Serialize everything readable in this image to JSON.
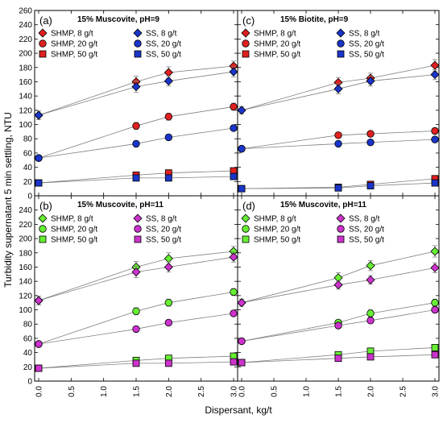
{
  "figure": {
    "ylabel": "Turbidity supernatant 5 min settling, NTU",
    "xlabel": "Dispersant, kg/t",
    "colors": {
      "red": "#e02020",
      "blue": "#1a35c9",
      "green": "#66ee33",
      "magenta": "#cc33cc",
      "line": "#808080",
      "errorbar": "#808080"
    }
  },
  "chart_data": [
    {
      "type": "scatter",
      "panel_label": "(a)",
      "title": "15% Muscovite, pH=9",
      "x": [
        0.0,
        1.5,
        2.0,
        3.0
      ],
      "xlim": [
        0,
        3
      ],
      "xticks": [
        "0.0",
        "0.5",
        "1.0",
        "1.5",
        "2.0",
        "2.5",
        "3.0"
      ],
      "ylim": [
        0,
        260
      ],
      "yticks": [
        "0",
        "20",
        "40",
        "60",
        "80",
        "100",
        "120",
        "140",
        "160",
        "180",
        "200",
        "220",
        "240",
        "260"
      ],
      "legend_position": "top-left",
      "series": [
        {
          "name": "SHMP, 8 g/t",
          "marker": "diamond",
          "color": "red",
          "values": [
            113,
            160,
            173,
            182
          ],
          "errors": [
            6,
            8,
            8,
            7
          ]
        },
        {
          "name": "SS, 8 g/t",
          "marker": "diamond",
          "color": "blue",
          "values": [
            113,
            153,
            161,
            174
          ],
          "errors": [
            6,
            8,
            7,
            7
          ]
        },
        {
          "name": "SHMP, 20 g/t",
          "marker": "circle",
          "color": "red",
          "values": [
            53,
            98,
            111,
            125
          ],
          "errors": [
            3,
            5,
            5,
            5
          ]
        },
        {
          "name": "SS, 20 g/t",
          "marker": "circle",
          "color": "blue",
          "values": [
            53,
            73,
            82,
            95
          ],
          "errors": [
            3,
            4,
            4,
            4
          ]
        },
        {
          "name": "SHMP, 50 g/t",
          "marker": "square",
          "color": "red",
          "values": [
            18,
            29,
            32,
            35
          ],
          "errors": [
            2,
            2,
            2,
            2
          ]
        },
        {
          "name": "SS, 50 g/t",
          "marker": "square",
          "color": "blue",
          "values": [
            18,
            25,
            25,
            27
          ],
          "errors": [
            2,
            2,
            2,
            2
          ]
        }
      ]
    },
    {
      "type": "scatter",
      "panel_label": "(c)",
      "title": "15% Biotite, pH=9",
      "x": [
        0.0,
        1.5,
        2.0,
        3.0
      ],
      "xlim": [
        0,
        3
      ],
      "xticks": [
        "0.0",
        "0.5",
        "1.0",
        "1.5",
        "2.0",
        "2.5",
        "3.0"
      ],
      "ylim": [
        0,
        260
      ],
      "yticks": [
        "0",
        "20",
        "40",
        "60",
        "80",
        "100",
        "120",
        "140",
        "160",
        "180",
        "200",
        "220",
        "240",
        "260"
      ],
      "legend_position": "top-left",
      "series": [
        {
          "name": "SHMP, 8 g/t",
          "marker": "diamond",
          "color": "red",
          "values": [
            120,
            159,
            165,
            183
          ],
          "errors": [
            5,
            7,
            7,
            8
          ]
        },
        {
          "name": "SS, 8 g/t",
          "marker": "diamond",
          "color": "blue",
          "values": [
            120,
            150,
            161,
            170
          ],
          "errors": [
            5,
            7,
            7,
            7
          ]
        },
        {
          "name": "SHMP, 20 g/t",
          "marker": "circle",
          "color": "red",
          "values": [
            66,
            85,
            87,
            91
          ],
          "errors": [
            3,
            4,
            4,
            4
          ]
        },
        {
          "name": "SS, 20 g/t",
          "marker": "circle",
          "color": "blue",
          "values": [
            66,
            73,
            75,
            79
          ],
          "errors": [
            3,
            3,
            3,
            3
          ]
        },
        {
          "name": "SHMP, 50 g/t",
          "marker": "square",
          "color": "red",
          "values": [
            10,
            12,
            16,
            24
          ],
          "errors": [
            1,
            2,
            2,
            2
          ]
        },
        {
          "name": "SS, 50 g/t",
          "marker": "square",
          "color": "blue",
          "values": [
            10,
            11,
            14,
            18
          ],
          "errors": [
            1,
            1,
            2,
            2
          ]
        }
      ]
    },
    {
      "type": "scatter",
      "panel_label": "(b)",
      "title": "15% Muscovite, pH=11",
      "x": [
        0.0,
        1.5,
        2.0,
        3.0
      ],
      "xlim": [
        0,
        3
      ],
      "xticks": [
        "0.0",
        "0.5",
        "1.0",
        "1.5",
        "2.0",
        "2.5",
        "3.0"
      ],
      "ylim": [
        0,
        260
      ],
      "yticks": [
        "0",
        "20",
        "40",
        "60",
        "80",
        "100",
        "120",
        "140",
        "160",
        "180",
        "200",
        "220",
        "240"
      ],
      "legend_position": "top-left",
      "series": [
        {
          "name": "SHMP, 8 g/t",
          "marker": "diamond",
          "color": "green",
          "values": [
            113,
            160,
            172,
            182
          ],
          "errors": [
            6,
            8,
            8,
            7
          ]
        },
        {
          "name": "SS, 8 g/t",
          "marker": "diamond",
          "color": "magenta",
          "values": [
            113,
            153,
            160,
            174
          ],
          "errors": [
            6,
            8,
            7,
            7
          ]
        },
        {
          "name": "SHMP, 20 g/t",
          "marker": "circle",
          "color": "green",
          "values": [
            52,
            98,
            110,
            125
          ],
          "errors": [
            3,
            5,
            5,
            5
          ]
        },
        {
          "name": "SS, 20 g/t",
          "marker": "circle",
          "color": "magenta",
          "values": [
            52,
            73,
            82,
            95
          ],
          "errors": [
            3,
            4,
            4,
            4
          ]
        },
        {
          "name": "SHMP, 50 g/t",
          "marker": "square",
          "color": "green",
          "values": [
            18,
            29,
            32,
            35
          ],
          "errors": [
            2,
            2,
            2,
            2
          ]
        },
        {
          "name": "SS, 50 g/t",
          "marker": "square",
          "color": "magenta",
          "values": [
            18,
            25,
            25,
            27
          ],
          "errors": [
            2,
            2,
            2,
            2
          ]
        }
      ]
    },
    {
      "type": "scatter",
      "panel_label": "(d)",
      "title": "15% Muscovite, pH=11",
      "x": [
        0.0,
        1.5,
        2.0,
        3.0
      ],
      "xlim": [
        0,
        3
      ],
      "xticks": [
        "0.0",
        "0.5",
        "1.0",
        "1.5",
        "2.0",
        "2.5",
        "3.0"
      ],
      "ylim": [
        0,
        260
      ],
      "yticks": [
        "0",
        "20",
        "40",
        "60",
        "80",
        "100",
        "120",
        "140",
        "160",
        "180",
        "200",
        "220",
        "240"
      ],
      "legend_position": "top-left",
      "series": [
        {
          "name": "SHMP, 8 g/t",
          "marker": "diamond",
          "color": "green",
          "values": [
            110,
            145,
            162,
            182
          ],
          "errors": [
            5,
            7,
            7,
            8
          ]
        },
        {
          "name": "SS, 8 g/t",
          "marker": "diamond",
          "color": "magenta",
          "values": [
            110,
            135,
            142,
            159
          ],
          "errors": [
            5,
            6,
            6,
            7
          ]
        },
        {
          "name": "SHMP, 20 g/t",
          "marker": "circle",
          "color": "green",
          "values": [
            56,
            82,
            95,
            110
          ],
          "errors": [
            3,
            4,
            5,
            5
          ]
        },
        {
          "name": "SS, 20 g/t",
          "marker": "circle",
          "color": "magenta",
          "values": [
            56,
            78,
            85,
            100
          ],
          "errors": [
            3,
            4,
            4,
            4
          ]
        },
        {
          "name": "SHMP, 50 g/t",
          "marker": "square",
          "color": "green",
          "values": [
            26,
            37,
            42,
            47
          ],
          "errors": [
            2,
            2,
            2,
            2
          ]
        },
        {
          "name": "SS, 50 g/t",
          "marker": "square",
          "color": "magenta",
          "values": [
            26,
            32,
            34,
            37
          ],
          "errors": [
            2,
            2,
            2,
            2
          ]
        }
      ]
    }
  ]
}
